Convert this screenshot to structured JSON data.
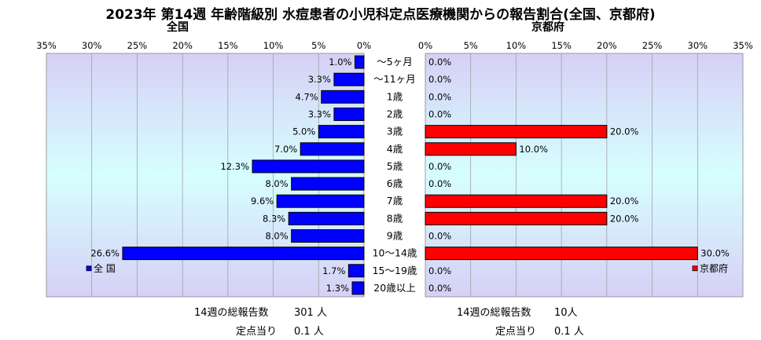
{
  "title": "2023年 第14週 年齢階級別 水痘患者の小児科定点医療機関からの報告割合(全国、京都府)",
  "chart_data": [
    {
      "type": "bar",
      "orientation": "horizontal",
      "direction": "right-to-left",
      "title": "全国",
      "categories": [
        "～5ヶ月",
        "～11ヶ月",
        "1歳",
        "2歳",
        "3歳",
        "4歳",
        "5歳",
        "6歳",
        "7歳",
        "8歳",
        "9歳",
        "10～14歳",
        "15～19歳",
        "20歳以上"
      ],
      "series": [
        {
          "name": "全 国",
          "color": "#0000ff",
          "values": [
            1.0,
            3.3,
            4.7,
            3.3,
            5.0,
            7.0,
            12.3,
            8.0,
            9.6,
            8.3,
            8.0,
            26.6,
            1.7,
            1.3
          ],
          "labels": [
            "1.0%",
            "3.3%",
            "4.7%",
            "3.3%",
            "5.0%",
            "7.0%",
            "12.3%",
            "8.0%",
            "9.6%",
            "8.3%",
            "8.0%",
            "26.6%",
            "1.7%",
            "1.3%"
          ]
        }
      ],
      "xlim": [
        0,
        35
      ],
      "ticks": [
        "35%",
        "30%",
        "25%",
        "20%",
        "15%",
        "10%",
        "5%",
        "0%"
      ],
      "legend_position": "bottom-left"
    },
    {
      "type": "bar",
      "orientation": "horizontal",
      "direction": "left-to-right",
      "title": "京都府",
      "categories": [
        "～5ヶ月",
        "～11ヶ月",
        "1歳",
        "2歳",
        "3歳",
        "4歳",
        "5歳",
        "6歳",
        "7歳",
        "8歳",
        "9歳",
        "10～14歳",
        "15～19歳",
        "20歳以上"
      ],
      "series": [
        {
          "name": "京都府",
          "color": "#ff0000",
          "values": [
            0.0,
            0.0,
            0.0,
            0.0,
            20.0,
            10.0,
            0.0,
            0.0,
            20.0,
            20.0,
            0.0,
            30.0,
            0.0,
            0.0
          ],
          "labels": [
            "0.0%",
            "0.0%",
            "0.0%",
            "0.0%",
            "20.0%",
            "10.0%",
            "0.0%",
            "0.0%",
            "20.0%",
            "20.0%",
            "0.0%",
            "30.0%",
            "0.0%",
            "0.0%"
          ]
        }
      ],
      "xlim": [
        0,
        35
      ],
      "ticks": [
        "0%",
        "5%",
        "10%",
        "15%",
        "20%",
        "25%",
        "30%",
        "35%"
      ],
      "legend_position": "bottom-right"
    }
  ],
  "footer": {
    "national": {
      "total_label": "14週の総報告数",
      "total_value": "301 人",
      "per_label": "定点当り",
      "per_value": "0.1 人"
    },
    "kyoto": {
      "total_label": "14週の総報告数",
      "total_value": "10人",
      "per_label": "定点当り",
      "per_value": "0.1 人"
    }
  }
}
